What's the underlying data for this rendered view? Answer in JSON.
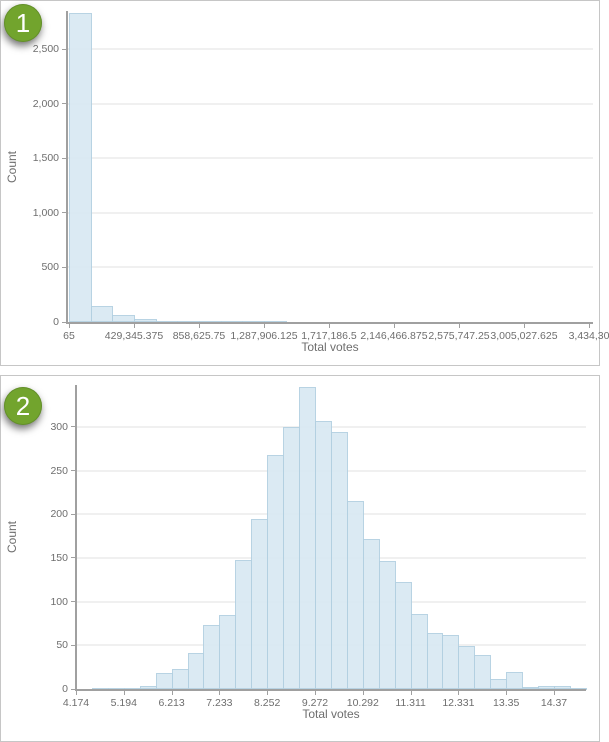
{
  "colors": {
    "bar_fill": "#d9e9f3",
    "bar_border": "#b3d0e1",
    "badge_green": "#72a42d",
    "axis_line": "#a0a0a0",
    "gridline": "#f0f0f0",
    "text_gray": "#6e6e6e",
    "panel_border": "#c6c6c6"
  },
  "chart_data": [
    {
      "type": "bar",
      "subtype": "histogram",
      "badge": "1",
      "title": "",
      "xlabel": "Total votes",
      "ylabel": "Count",
      "x_tick_labels": [
        "65",
        "429,345.375",
        "858,625.75",
        "1,287,906.125",
        "1,717,186.5",
        "2,146,466.875",
        "2,575,747.25",
        "3,005,027.625",
        "3,434,30"
      ],
      "y_ticks": [
        0,
        500,
        1000,
        1500,
        2000,
        2500
      ],
      "y_tick_labels": [
        "0",
        "500",
        "1,000",
        "1,500",
        "2,000",
        "2,500"
      ],
      "ylim": [
        0,
        2850
      ],
      "bins_per_tick_interval": 3,
      "legend": "none",
      "grid": "horizontal",
      "values": [
        2835,
        145,
        64,
        30,
        12,
        6,
        3,
        3,
        2,
        1,
        0,
        0,
        0,
        0,
        0,
        0,
        0,
        0,
        0,
        0,
        0,
        0,
        0,
        0
      ]
    },
    {
      "type": "bar",
      "subtype": "histogram",
      "badge": "2",
      "title": "",
      "xlabel": "Total votes",
      "ylabel": "Count",
      "x_tick_labels": [
        "4.174",
        "5.194",
        "6.213",
        "7.233",
        "8.252",
        "9.272",
        "10.292",
        "11.311",
        "12.331",
        "13.35",
        "14.37"
      ],
      "y_ticks": [
        0,
        50,
        100,
        150,
        200,
        250,
        300
      ],
      "y_tick_labels": [
        "0",
        "50",
        "100",
        "150",
        "200",
        "250",
        "300"
      ],
      "ylim": [
        0,
        348
      ],
      "bins_per_tick_interval": 3,
      "legend": "none",
      "grid": "horizontal",
      "values": [
        0,
        1,
        1,
        1,
        4,
        18,
        23,
        41,
        73,
        85,
        148,
        195,
        268,
        300,
        346,
        307,
        294,
        215,
        172,
        146,
        122,
        86,
        64,
        62,
        49,
        39,
        12,
        19,
        2,
        3,
        3,
        1
      ]
    }
  ]
}
